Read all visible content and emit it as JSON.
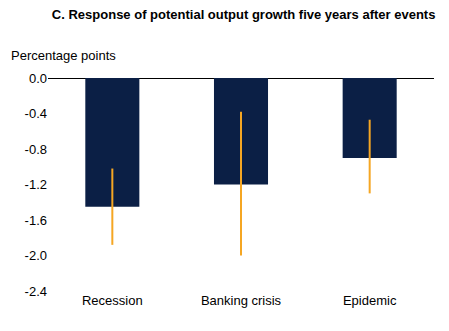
{
  "chart_data": {
    "type": "bar",
    "title": "C. Response of potential output growth five years after events",
    "subtitle": "Percentage points",
    "categories": [
      "Recession",
      "Banking crisis",
      "Epidemic"
    ],
    "values": [
      -1.45,
      -1.2,
      -0.9
    ],
    "color": "#0b1f45",
    "error_bars": {
      "color": "#f5a623",
      "low": [
        -1.88,
        -2.0,
        -1.3
      ],
      "high": [
        -1.02,
        -0.38,
        -0.47
      ]
    },
    "ylim": [
      -2.4,
      0
    ],
    "yticks": [
      {
        "value": 0,
        "label": "0.0"
      },
      -0.4,
      -0.8,
      -1.2,
      -1.6,
      {
        "value": -2,
        "label": "-2.0"
      },
      -2.4
    ],
    "grid": false
  }
}
